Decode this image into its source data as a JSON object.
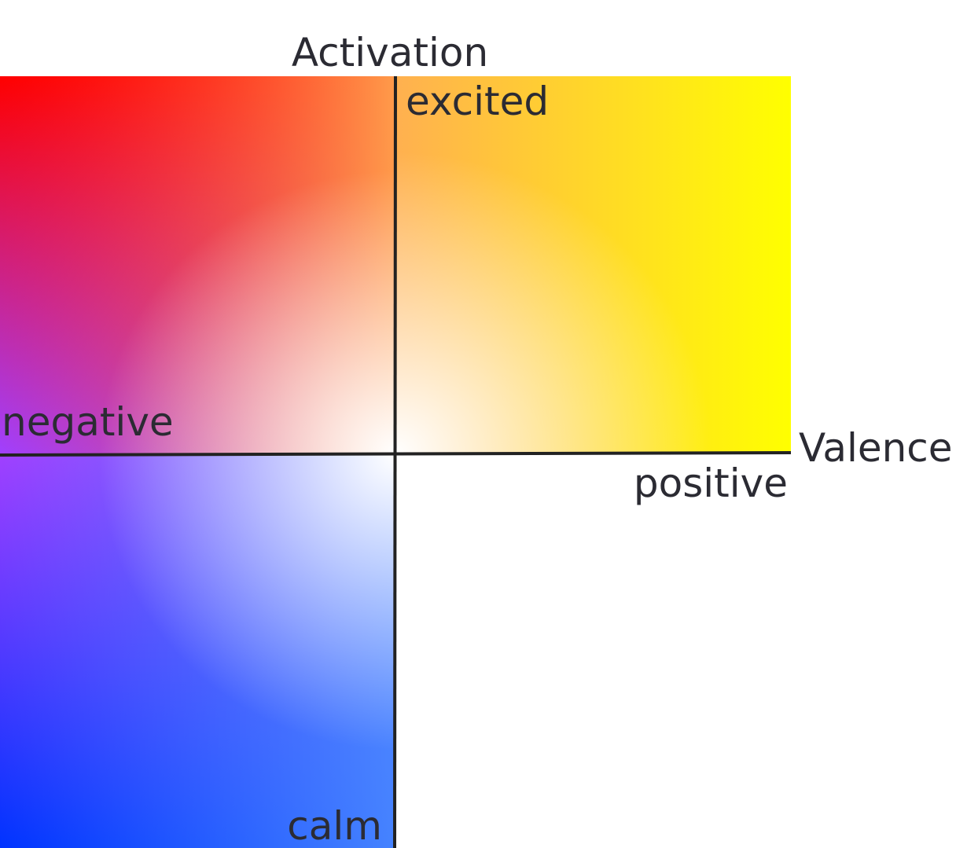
{
  "diagram": {
    "axis_labels": {
      "vertical": "Activation",
      "horizontal": "Valence"
    },
    "pole_labels": {
      "top": "excited",
      "bottom": "calm",
      "left": "negative",
      "right": "positive"
    },
    "colors": {
      "top_left_corner": "#ff0000",
      "top_right_corner": "#ffff00",
      "left_middle": "#a040ff",
      "bottom_left_corner": "#0033ff",
      "bottom_right_inner": "#4d8cff",
      "center": "#ffffff",
      "axis_line": "#222222",
      "text": "#2b2b33"
    }
  }
}
